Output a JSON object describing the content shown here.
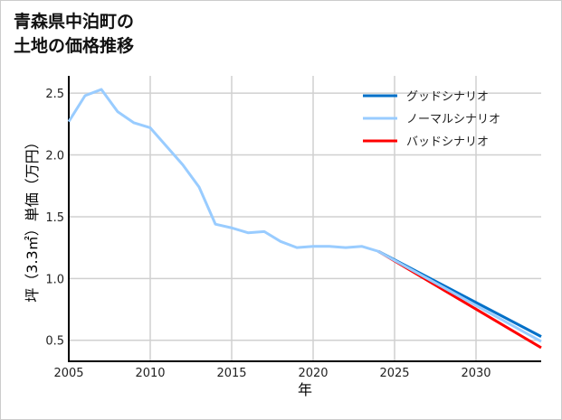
{
  "chart_data": {
    "type": "line",
    "title": [
      "青森県中泊町の",
      "土地の価格推移"
    ],
    "xlabel": "年",
    "ylabel": "坪（3.3㎡）単価（万円）",
    "xlim": [
      2005,
      2034
    ],
    "ylim": [
      0.33,
      2.64
    ],
    "xticks": [
      2005,
      2010,
      2015,
      2020,
      2025,
      2030
    ],
    "yticks": [
      0.5,
      1.0,
      1.5,
      2.0,
      2.5
    ],
    "ytick_labels": [
      "0.5",
      "1.0",
      "1.5",
      "2.0",
      "2.5"
    ],
    "grid": true,
    "legend_position": "top-right",
    "series": [
      {
        "name": "グッドシナリオ",
        "color": "#0070c8",
        "x": [
          2024,
          2034
        ],
        "y": [
          1.22,
          0.53
        ]
      },
      {
        "name": "ノーマルシナリオ",
        "color": "#99ccff",
        "x": [
          2005,
          2006,
          2007,
          2008,
          2009,
          2010,
          2011,
          2012,
          2013,
          2014,
          2015,
          2016,
          2017,
          2018,
          2019,
          2020,
          2021,
          2022,
          2023,
          2024,
          2034
        ],
        "y": [
          2.27,
          2.48,
          2.53,
          2.35,
          2.26,
          2.22,
          2.07,
          1.92,
          1.74,
          1.44,
          1.41,
          1.37,
          1.38,
          1.3,
          1.25,
          1.26,
          1.26,
          1.25,
          1.26,
          1.22,
          0.49
        ]
      },
      {
        "name": "バッドシナリオ",
        "color": "#ff0000",
        "x": [
          2024,
          2034
        ],
        "y": [
          1.22,
          0.44
        ]
      }
    ]
  }
}
